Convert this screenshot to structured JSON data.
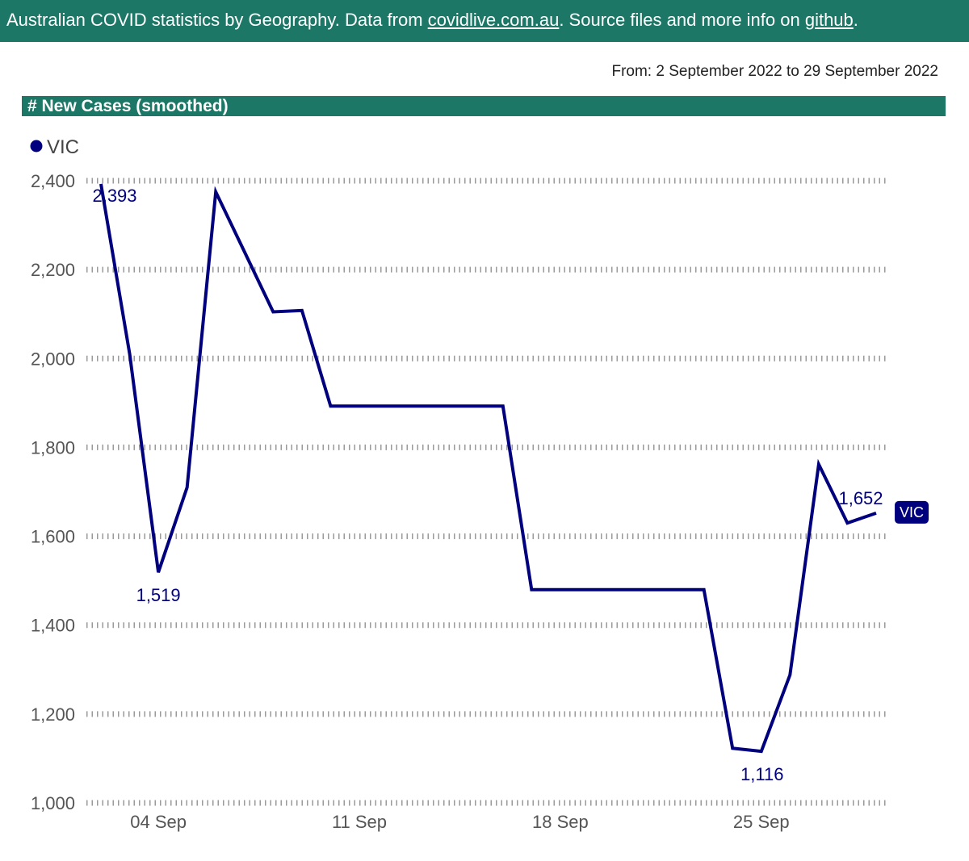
{
  "header": {
    "text_before_link1": "Australian COVID statistics by Geography. Data from ",
    "link1_text": "covidlive.com.au",
    "text_between_links": ". Source files and more info on ",
    "link2_text": "github",
    "text_after_link2": "."
  },
  "date_range": "From: 2 September 2022 to 29 September 2022",
  "section_title": "# New Cases (smoothed)",
  "colors": {
    "header_bg": "#1c7766",
    "series": "#00007f",
    "axis_text": "#555555",
    "grid": "#9a9a9a"
  },
  "chart_data": {
    "type": "line",
    "title": "",
    "xlabel": "",
    "ylabel": "",
    "legend": {
      "position": "top-left",
      "entries": [
        "VIC"
      ]
    },
    "ylim": [
      1000,
      2400
    ],
    "yticks": [
      1000,
      1200,
      1400,
      1600,
      1800,
      2000,
      2200,
      2400
    ],
    "ytick_labels": [
      "1,000",
      "1,200",
      "1,400",
      "1,600",
      "1,800",
      "2,000",
      "2,200",
      "2,400"
    ],
    "xlim": [
      "2022-09-02",
      "2022-09-29"
    ],
    "xticks": [
      "2022-09-04",
      "2022-09-11",
      "2022-09-18",
      "2022-09-25"
    ],
    "xtick_labels": [
      "04 Sep",
      "11 Sep",
      "18 Sep",
      "25 Sep"
    ],
    "grid": true,
    "series": [
      {
        "name": "VIC",
        "end_label": "VIC",
        "x": [
          "2022-09-02",
          "2022-09-03",
          "2022-09-04",
          "2022-09-05",
          "2022-09-06",
          "2022-09-07",
          "2022-09-08",
          "2022-09-09",
          "2022-09-10",
          "2022-09-11",
          "2022-09-12",
          "2022-09-13",
          "2022-09-14",
          "2022-09-15",
          "2022-09-16",
          "2022-09-17",
          "2022-09-18",
          "2022-09-19",
          "2022-09-20",
          "2022-09-21",
          "2022-09-22",
          "2022-09-23",
          "2022-09-24",
          "2022-09-25",
          "2022-09-26",
          "2022-09-27",
          "2022-09-28",
          "2022-09-29"
        ],
        "values": [
          2393,
          2010,
          1519,
          1710,
          2375,
          2240,
          2105,
          2108,
          1893,
          1893,
          1893,
          1893,
          1893,
          1893,
          1893,
          1480,
          1480,
          1480,
          1480,
          1480,
          1480,
          1480,
          1123,
          1116,
          1288,
          1762,
          1630,
          1652
        ],
        "data_labels": [
          {
            "x": "2022-09-02",
            "value": 2393,
            "text": "2,393"
          },
          {
            "x": "2022-09-04",
            "value": 1519,
            "text": "1,519"
          },
          {
            "x": "2022-09-25",
            "value": 1116,
            "text": "1,116"
          },
          {
            "x": "2022-09-29",
            "value": 1652,
            "text": "1,652"
          }
        ]
      }
    ]
  }
}
